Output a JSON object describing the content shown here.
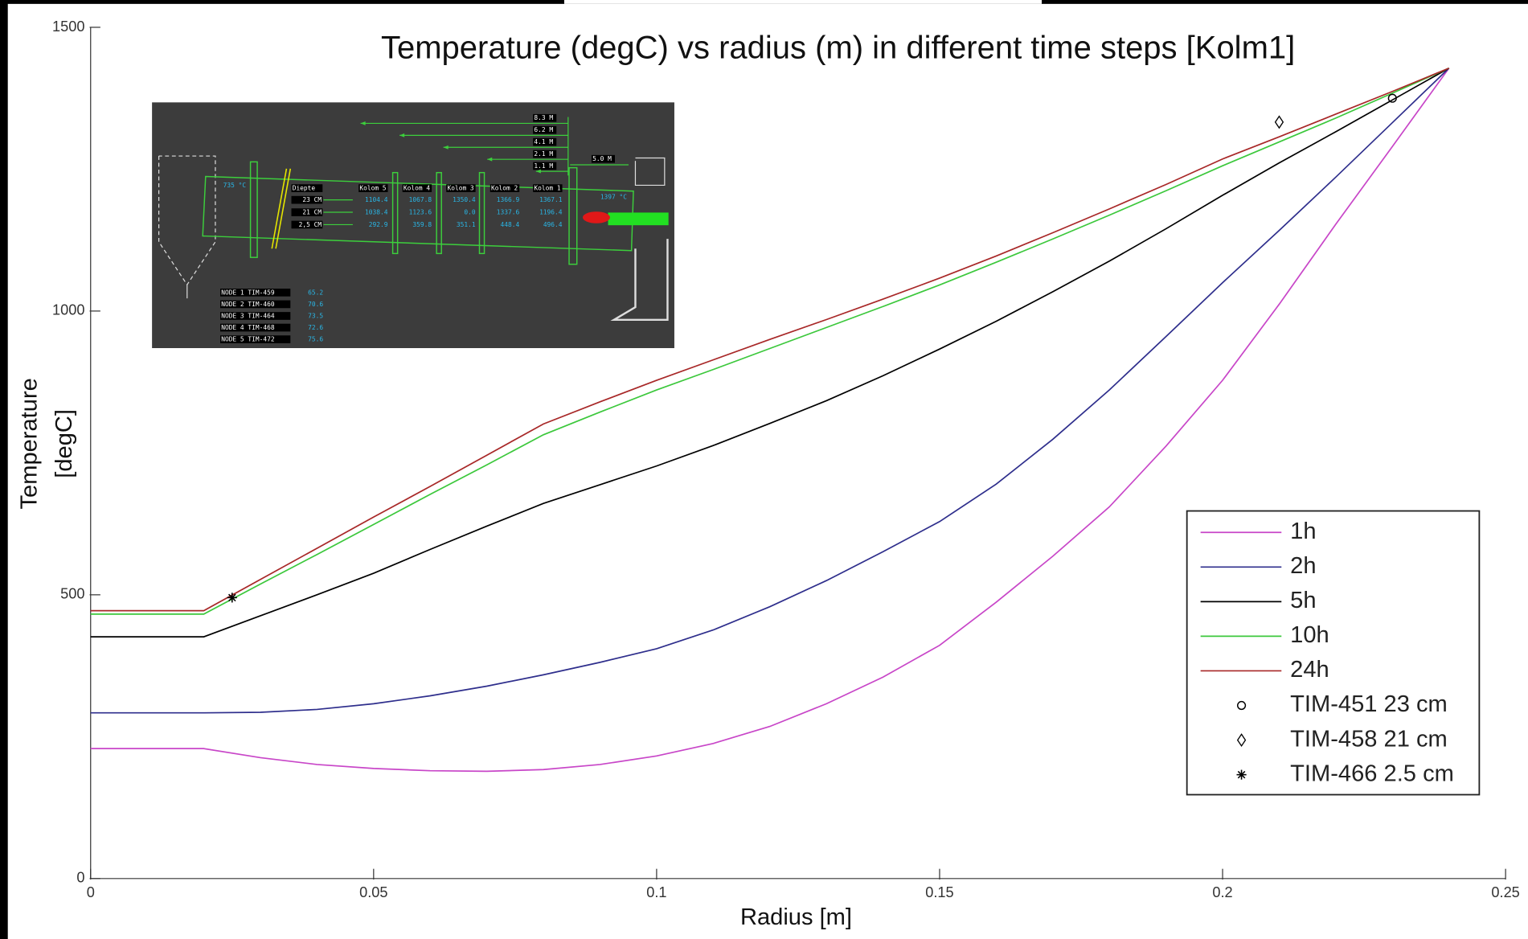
{
  "chart_data": {
    "type": "line",
    "title": "Temperature (degC) vs radius (m) in different time steps [Kolm1]",
    "xlabel": "Radius [m]",
    "ylabel": [
      "Temperature",
      "[degC]"
    ],
    "x": [
      0,
      0.02,
      0.03,
      0.04,
      0.05,
      0.06,
      0.07,
      0.08,
      0.09,
      0.1,
      0.11,
      0.12,
      0.13,
      0.14,
      0.15,
      0.16,
      0.17,
      0.18,
      0.19,
      0.2,
      0.21,
      0.22,
      0.23,
      0.24
    ],
    "series": [
      {
        "name": "1h",
        "color": "#c846c8",
        "values": [
          229,
          229,
          213,
          201,
          194,
          190,
          189,
          192,
          201,
          216,
          238,
          268,
          308,
          355,
          411,
          487,
          568,
          655,
          762,
          878,
          1012,
          1153,
          1290,
          1428
        ]
      },
      {
        "name": "2h",
        "color": "#2e2e8c",
        "values": [
          292,
          292,
          293,
          298,
          308,
          322,
          339,
          359,
          381,
          405,
          438,
          479,
          525,
          576,
          629,
          695,
          774,
          861,
          955,
          1050,
          1142,
          1236,
          1332,
          1428
        ]
      },
      {
        "name": "5h",
        "color": "#000000",
        "values": [
          426,
          426,
          463,
          500,
          538,
          580,
          621,
          661,
          694,
          727,
          763,
          802,
          842,
          886,
          933,
          982,
          1034,
          1088,
          1145,
          1204,
          1261,
          1316,
          1372,
          1428
        ]
      },
      {
        "name": "10h",
        "color": "#3cc83c",
        "values": [
          466,
          466,
          519,
          571,
          624,
          677,
          729,
          782,
          822,
          861,
          897,
          934,
          971,
          1008,
          1046,
          1086,
          1127,
          1169,
          1212,
          1256,
          1298,
          1340,
          1384,
          1428
        ]
      },
      {
        "name": "24h",
        "color": "#a82828",
        "values": [
          472,
          472,
          527,
          582,
          637,
          691,
          746,
          801,
          840,
          878,
          914,
          950,
          985,
          1021,
          1058,
          1097,
          1138,
          1180,
          1223,
          1268,
          1307,
          1347,
          1387,
          1428
        ]
      }
    ],
    "points": [
      {
        "name": "TIM-451 23 cm",
        "marker": "circle",
        "color": "#000000",
        "x": 0.23,
        "y": 1375
      },
      {
        "name": "TIM-458 21 cm",
        "marker": "diamond",
        "color": "#000000",
        "x": 0.21,
        "y": 1333
      },
      {
        "name": "TIM-466 2.5 cm",
        "marker": "asterisk",
        "color": "#000000",
        "x": 0.025,
        "y": 495
      }
    ],
    "xlim": [
      0,
      0.25
    ],
    "xticks": [
      0,
      0.05,
      0.1,
      0.15,
      0.2,
      0.25
    ],
    "ylim": [
      0,
      1500
    ],
    "yticks": [
      0,
      500,
      1000,
      1500
    ],
    "grid": false,
    "legend": "lower right"
  },
  "inset": {
    "distance_labels": [
      "8.3 M",
      "6.2 M",
      "4.1 M",
      "2.1 M",
      "1.1 M"
    ],
    "burner_label": "5.0 M",
    "inlet_temp": "735 °C",
    "outlet_temp": "1397 °C",
    "table": {
      "header": [
        "Diepte",
        "Kolom 5",
        "Kolom 4",
        "Kolom 3",
        "Kolom 2",
        "Kolom 1"
      ],
      "rows": [
        [
          "23 CM",
          "1104.4",
          "1067.8",
          "1350.4",
          "1366.9",
          "1367.1"
        ],
        [
          "21 CM",
          "1038.4",
          "1123.6",
          "0.0",
          "1337.6",
          "1196.4"
        ],
        [
          "2,5 CM",
          "292.9",
          "359.8",
          "351.1",
          "448.4",
          "496.4"
        ]
      ]
    },
    "nodes": [
      [
        "NODE 1 TIM-459",
        "65.2"
      ],
      [
        "NODE 2 TIM-460",
        "70.6"
      ],
      [
        "NODE 3 TIM-464",
        "73.5"
      ],
      [
        "NODE 4 TIM-468",
        "72.6"
      ],
      [
        "NODE 5 TIM-472",
        "75.6"
      ]
    ]
  }
}
